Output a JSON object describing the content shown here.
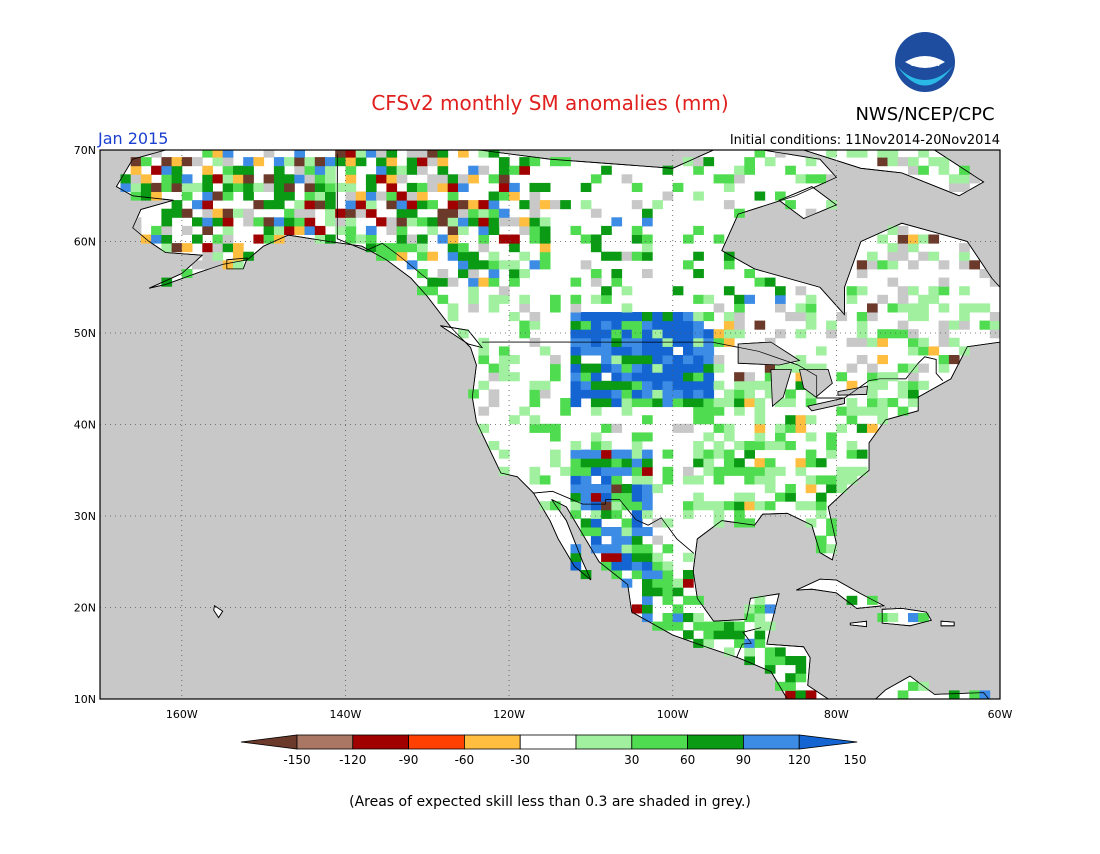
{
  "title": "CFSv2 monthly SM anomalies (mm)",
  "target_month": "Jan 2015",
  "initial_conditions": "Initial conditions: 11Nov2014-20Nov2014",
  "agency": "NWS/NCEP/CPC",
  "logo_text": "NOAA",
  "footnote": "(Areas of expected skill less than 0.3 are shaded in grey.)",
  "map": {
    "lon_range": [
      -170,
      -60
    ],
    "lat_range": [
      10,
      70
    ],
    "lat_ticks": [
      "70N",
      "60N",
      "50N",
      "40N",
      "30N",
      "20N",
      "10N"
    ],
    "lon_ticks": [
      "160W",
      "140W",
      "120W",
      "100W",
      "80W",
      "60W"
    ],
    "grid": "dotted",
    "land_color": "#ffffff",
    "low_skill_color": "#c8c8c8"
  },
  "colorbar": {
    "tick_labels": [
      "-150",
      "-120",
      "-90",
      "-60",
      "-30",
      "30",
      "60",
      "90",
      "120",
      "150"
    ],
    "colors": [
      "#6b3a2a",
      "#a97763",
      "#a00000",
      "#ff4000",
      "#ffbe40",
      "#ffffff",
      "#a0f0a0",
      "#50dc50",
      "#0a9a14",
      "#3c8ce6",
      "#1464d2"
    ]
  }
}
